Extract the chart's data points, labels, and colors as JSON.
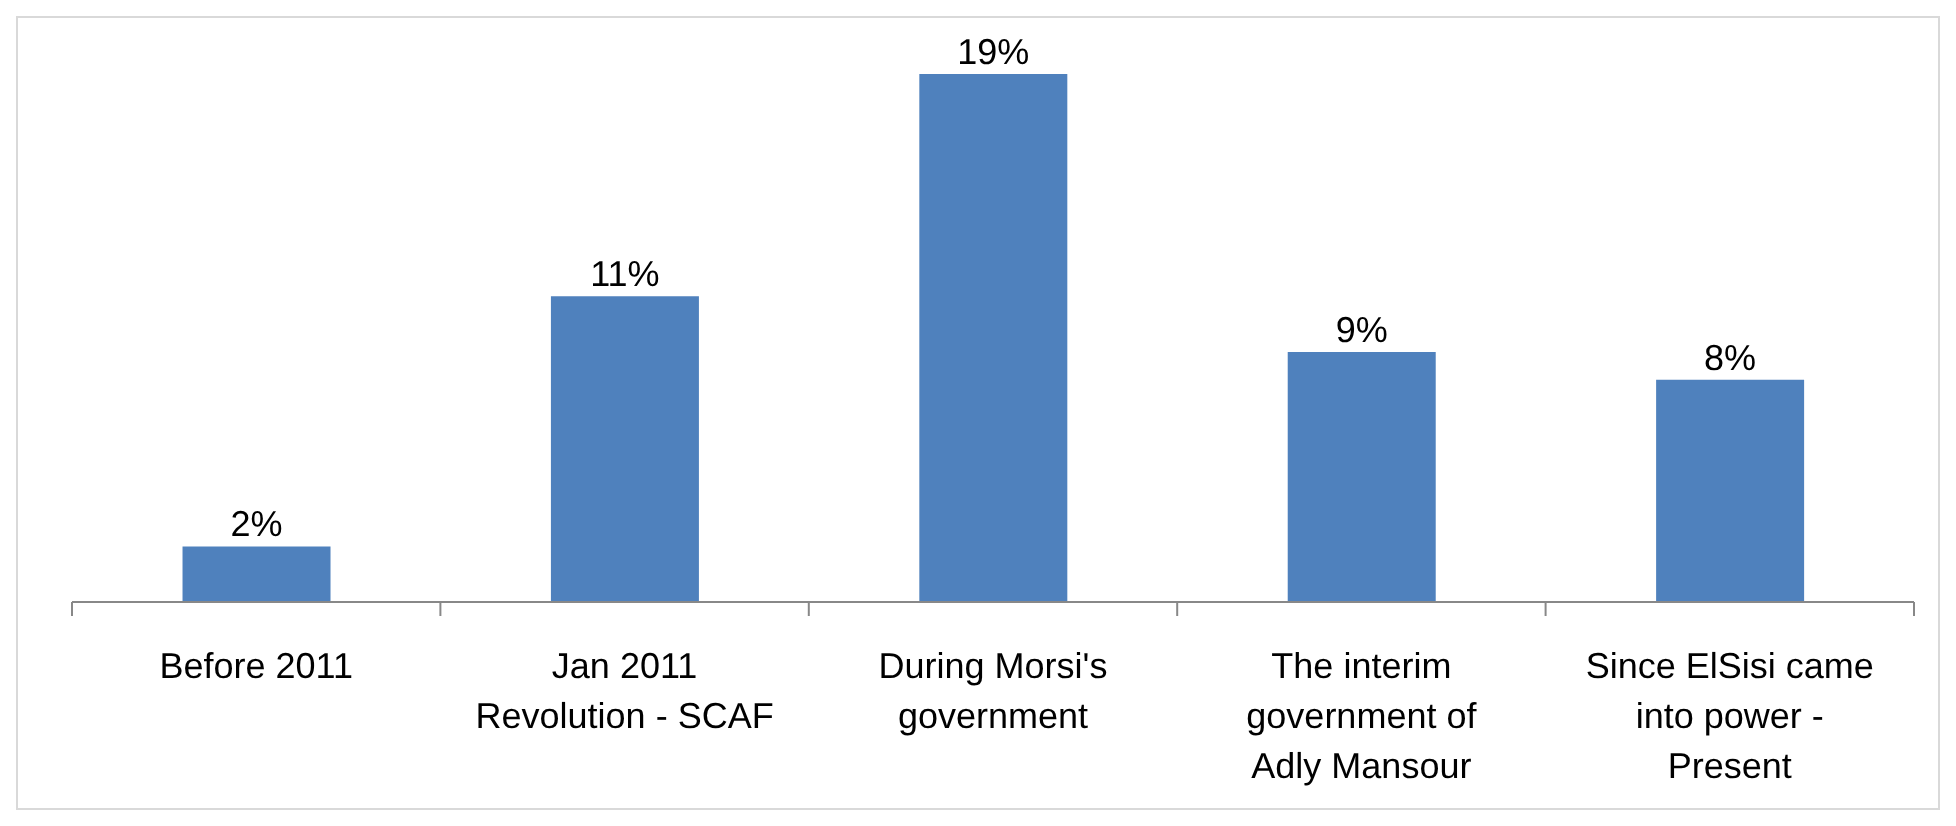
{
  "chart_data": {
    "type": "bar",
    "categories": [
      "Before 2011",
      "Jan 2011 Revolution - SCAF",
      "During Morsi's government",
      "The interim government of Adly Mansour",
      "Since ElSisi came into power - Present"
    ],
    "values": [
      2,
      11,
      19,
      9,
      8
    ],
    "value_labels": [
      "2%",
      "11%",
      "19%",
      "9%",
      "8%"
    ],
    "color": "#4f81bd",
    "grid": false,
    "legend": false
  }
}
